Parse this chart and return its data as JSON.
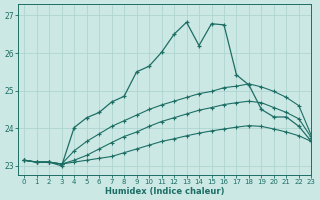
{
  "xlabel": "Humidex (Indice chaleur)",
  "bg_color": "#cce8e5",
  "grid_color": "#afd4d0",
  "line_color": "#1c6e64",
  "xlim": [
    -0.5,
    23
  ],
  "ylim": [
    22.75,
    27.3
  ],
  "yticks": [
    23,
    24,
    25,
    26,
    27
  ],
  "xticks": [
    0,
    1,
    2,
    3,
    4,
    5,
    6,
    7,
    8,
    9,
    10,
    11,
    12,
    13,
    14,
    15,
    16,
    17,
    18,
    19,
    20,
    21,
    22,
    23
  ],
  "line1_x": [
    0,
    1,
    2,
    3,
    4,
    5,
    6,
    7,
    8,
    9,
    10,
    11,
    12,
    13,
    14,
    15,
    16,
    17,
    18,
    19,
    20,
    21,
    22,
    23
  ],
  "line1_y": [
    23.15,
    23.1,
    23.1,
    23.05,
    23.1,
    23.15,
    23.2,
    23.25,
    23.35,
    23.45,
    23.55,
    23.65,
    23.72,
    23.8,
    23.87,
    23.93,
    23.98,
    24.03,
    24.07,
    24.05,
    23.98,
    23.9,
    23.8,
    23.65
  ],
  "line2_x": [
    0,
    1,
    2,
    3,
    4,
    5,
    6,
    7,
    8,
    9,
    10,
    11,
    12,
    13,
    14,
    15,
    16,
    17,
    18,
    19,
    20,
    21,
    22,
    23
  ],
  "line2_y": [
    23.15,
    23.1,
    23.1,
    23.05,
    23.15,
    23.28,
    23.45,
    23.62,
    23.78,
    23.9,
    24.05,
    24.18,
    24.28,
    24.38,
    24.48,
    24.55,
    24.63,
    24.68,
    24.72,
    24.68,
    24.55,
    24.42,
    24.25,
    23.75
  ],
  "line3_x": [
    0,
    1,
    2,
    3,
    4,
    5,
    6,
    7,
    8,
    9,
    10,
    11,
    12,
    13,
    14,
    15,
    16,
    17,
    18,
    19,
    20,
    21,
    22,
    23
  ],
  "line3_y": [
    23.15,
    23.1,
    23.1,
    23.05,
    23.4,
    23.65,
    23.85,
    24.05,
    24.2,
    24.35,
    24.5,
    24.62,
    24.72,
    24.82,
    24.92,
    24.98,
    25.08,
    25.12,
    25.18,
    25.1,
    24.98,
    24.82,
    24.6,
    23.8
  ],
  "line4_x": [
    0,
    1,
    2,
    3,
    4,
    5,
    6,
    7,
    8,
    9,
    10,
    11,
    12,
    13,
    14,
    15,
    16,
    17,
    18,
    19,
    20,
    21,
    22,
    23
  ],
  "line4_y": [
    23.15,
    23.1,
    23.1,
    23.0,
    24.02,
    24.28,
    24.42,
    24.7,
    24.85,
    25.5,
    25.65,
    26.02,
    26.5,
    26.82,
    26.2,
    26.78,
    26.75,
    25.42,
    25.15,
    24.5,
    24.3,
    24.3,
    24.05,
    23.65
  ]
}
